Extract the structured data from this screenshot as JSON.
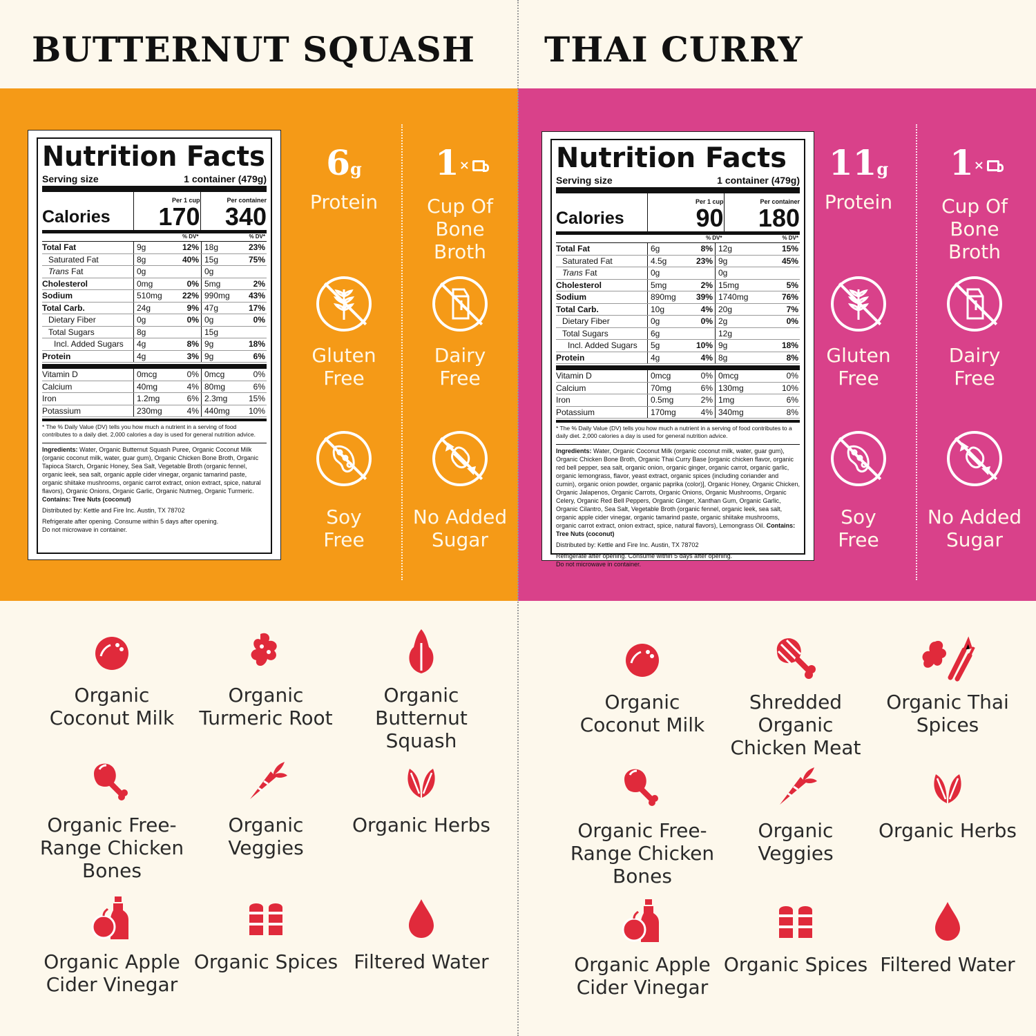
{
  "left": {
    "title": "BUTTERNUT SQUASH",
    "label": {
      "heading": "Nutrition Facts",
      "serving_label": "Serving size",
      "serving_value": "1 container (479g)",
      "calories_label": "Calories",
      "per_cup_head": "Per 1 cup",
      "per_container_head": "Per container",
      "calories_cup": "170",
      "calories_container": "340",
      "dv_head": "% DV*",
      "rows": [
        {
          "name": "Total Fat",
          "a": "9g",
          "p": "12%",
          "a2": "18g",
          "p2": "23%"
        },
        {
          "name": "Saturated Fat",
          "a": "8g",
          "p": "40%",
          "a2": "15g",
          "p2": "75%"
        },
        {
          "name": "Trans Fat",
          "a": "0g",
          "p": "",
          "a2": "0g",
          "p2": ""
        },
        {
          "name": "Cholesterol",
          "a": "0mg",
          "p": "0%",
          "a2": "5mg",
          "p2": "2%"
        },
        {
          "name": "Sodium",
          "a": "510mg",
          "p": "22%",
          "a2": "990mg",
          "p2": "43%"
        },
        {
          "name": "Total Carb.",
          "a": "24g",
          "p": "9%",
          "a2": "47g",
          "p2": "17%"
        },
        {
          "name": "Dietary Fiber",
          "a": "0g",
          "p": "0%",
          "a2": "0g",
          "p2": "0%"
        },
        {
          "name": "Total Sugars",
          "a": "8g",
          "p": "",
          "a2": "15g",
          "p2": ""
        },
        {
          "name": "Incl. Added Sugars",
          "a": "4g",
          "p": "8%",
          "a2": "9g",
          "p2": "18%"
        },
        {
          "name": "Protein",
          "a": "4g",
          "p": "3%",
          "a2": "9g",
          "p2": "6%"
        }
      ],
      "vitamins": [
        {
          "name": "Vitamin D",
          "a": "0mcg",
          "p": "0%",
          "a2": "0mcg",
          "p2": "0%"
        },
        {
          "name": "Calcium",
          "a": "40mg",
          "p": "4%",
          "a2": "80mg",
          "p2": "6%"
        },
        {
          "name": "Iron",
          "a": "1.2mg",
          "p": "6%",
          "a2": "2.3mg",
          "p2": "15%"
        },
        {
          "name": "Potassium",
          "a": "230mg",
          "p": "4%",
          "a2": "440mg",
          "p2": "10%"
        }
      ],
      "footnote": "* The % Daily Value (DV) tells you how much a nutrient in a serving of food contributes to a daily diet. 2,000 calories a day is used for general nutrition advice.",
      "ingredients_label": "Ingredients:",
      "ingredients": "Water, Organic Butternut Squash Puree, Organic Coconut Milk (organic coconut milk, water, guar gum), Organic Chicken Bone Broth, Organic Tapioca Starch, Organic Honey, Sea Salt, Vegetable Broth (organic fennel, organic leek, sea salt, organic apple cider vinegar, organic tamarind paste, organic shiitake mushrooms, organic carrot extract, onion extract, spice, natural flavors), Organic Onions, Organic Garlic, Organic Nutmeg, Organic Turmeric.",
      "contains": "Contains: Tree Nuts (coconut)",
      "distributed": "Distributed by: Kettle and Fire Inc. Austin, TX 78702",
      "refrigerate": "Refrigerate after opening. Consume within 5 days after opening.",
      "microwave": "Do not microwave in container."
    },
    "protein_value": "6",
    "protein_unit": "g",
    "protein_label": "Protein",
    "cup_value": "1",
    "cup_x": "×",
    "cup_label": "Cup Of Bone Broth",
    "gluten_label": "Gluten Free",
    "dairy_label": "Dairy Free",
    "soy_label": "Soy Free",
    "sugar_label": "No Added Sugar",
    "ingredients": [
      {
        "label": "Organic Coconut Milk",
        "icon": "coconut-icon"
      },
      {
        "label": "Organic Turmeric Root",
        "icon": "turmeric-icon"
      },
      {
        "label": "Organic Butternut Squash",
        "icon": "squash-icon"
      },
      {
        "label": "Organic Free-Range Chicken Bones",
        "icon": "chicken-leg-icon"
      },
      {
        "label": "Organic Veggies",
        "icon": "carrot-icon"
      },
      {
        "label": "Organic Herbs",
        "icon": "leaf-icon"
      },
      {
        "label": "Organic Apple Cider Vinegar",
        "icon": "apple-bottle-icon"
      },
      {
        "label": "Organic Spices",
        "icon": "shakers-icon"
      },
      {
        "label": "Filtered Water",
        "icon": "water-drop-icon"
      }
    ]
  },
  "right": {
    "title": "THAI CURRY",
    "label": {
      "heading": "Nutrition Facts",
      "serving_label": "Serving size",
      "serving_value": "1 container (479g)",
      "calories_label": "Calories",
      "per_cup_head": "Per 1 cup",
      "per_container_head": "Per container",
      "calories_cup": "90",
      "calories_container": "180",
      "dv_head": "% DV*",
      "rows": [
        {
          "name": "Total Fat",
          "a": "6g",
          "p": "8%",
          "a2": "12g",
          "p2": "15%"
        },
        {
          "name": "Saturated Fat",
          "a": "4.5g",
          "p": "23%",
          "a2": "9g",
          "p2": "45%"
        },
        {
          "name": "Trans Fat",
          "a": "0g",
          "p": "",
          "a2": "0g",
          "p2": ""
        },
        {
          "name": "Cholesterol",
          "a": "5mg",
          "p": "2%",
          "a2": "15mg",
          "p2": "5%"
        },
        {
          "name": "Sodium",
          "a": "890mg",
          "p": "39%",
          "a2": "1740mg",
          "p2": "76%"
        },
        {
          "name": "Total Carb.",
          "a": "10g",
          "p": "4%",
          "a2": "20g",
          "p2": "7%"
        },
        {
          "name": "Dietary Fiber",
          "a": "0g",
          "p": "0%",
          "a2": "2g",
          "p2": "0%"
        },
        {
          "name": "Total Sugars",
          "a": "6g",
          "p": "",
          "a2": "12g",
          "p2": ""
        },
        {
          "name": "Incl. Added Sugars",
          "a": "5g",
          "p": "10%",
          "a2": "9g",
          "p2": "18%"
        },
        {
          "name": "Protein",
          "a": "4g",
          "p": "4%",
          "a2": "8g",
          "p2": "8%"
        }
      ],
      "vitamins": [
        {
          "name": "Vitamin D",
          "a": "0mcg",
          "p": "0%",
          "a2": "0mcg",
          "p2": "0%"
        },
        {
          "name": "Calcium",
          "a": "70mg",
          "p": "6%",
          "a2": "130mg",
          "p2": "10%"
        },
        {
          "name": "Iron",
          "a": "0.5mg",
          "p": "2%",
          "a2": "1mg",
          "p2": "6%"
        },
        {
          "name": "Potassium",
          "a": "170mg",
          "p": "4%",
          "a2": "340mg",
          "p2": "8%"
        }
      ],
      "footnote": "* The % Daily Value (DV) tells you how much a nutrient in a serving of food contributes to a daily diet. 2,000 calories a day is used for general nutrition advice.",
      "ingredients_label": "Ingredients:",
      "ingredients": "Water, Organic Coconut Milk (organic coconut milk, water, guar gum), Organic Chicken Bone Broth, Organic Thai Curry Base [organic chicken flavor, organic red bell pepper, sea salt, organic onion, organic ginger, organic carrot, organic garlic, organic lemongrass, flavor, yeast extract, organic spices (including coriander and cumin), organic onion powder, organic paprika (color)], Organic Honey, Organic Chicken, Organic Jalapenos, Organic Carrots, Organic Onions, Organic Mushrooms, Organic Celery, Organic Red Bell Peppers, Organic Ginger, Xanthan Gum, Organic Garlic, Organic Cilantro, Sea Salt, Vegetable Broth (organic fennel, organic leek, sea salt, organic apple cider vinegar, organic tamarind paste, organic shiitake mushrooms, organic carrot extract, onion extract, spice, natural flavors), Lemongrass Oil.",
      "contains": "Contains: Tree Nuts (coconut)",
      "distributed": "Distributed by: Kettle and Fire Inc. Austin, TX 78702",
      "refrigerate": "Refrigerate after opening. Consume within 5 days after opening.",
      "microwave": "Do not microwave in container."
    },
    "protein_value": "11",
    "protein_unit": "g",
    "protein_label": "Protein",
    "cup_value": "1",
    "cup_x": "×",
    "cup_label": "Cup Of Bone Broth",
    "gluten_label": "Gluten Free",
    "dairy_label": "Dairy Free",
    "soy_label": "Soy Free",
    "sugar_label": "No Added Sugar",
    "ingredients": [
      {
        "label": "Organic Coconut Milk",
        "icon": "coconut-icon"
      },
      {
        "label": "Shredded Organic Chicken Meat",
        "icon": "drumstick-icon"
      },
      {
        "label": "Organic Thai Spices",
        "icon": "ginger-lemongrass-icon"
      },
      {
        "label": "Organic Free-Range Chicken Bones",
        "icon": "chicken-leg-icon"
      },
      {
        "label": "Organic Veggies",
        "icon": "carrot-icon"
      },
      {
        "label": "Organic Herbs",
        "icon": "leaf-icon"
      },
      {
        "label": "Organic Apple Cider Vinegar",
        "icon": "apple-bottle-icon"
      },
      {
        "label": "Organic Spices",
        "icon": "shakers-icon"
      },
      {
        "label": "Filtered Water",
        "icon": "water-drop-icon"
      }
    ]
  },
  "colors": {
    "butternut_band": "#f59a17",
    "thai_band": "#d9418a",
    "cream_bg": "#fdf8ec",
    "icon_red": "#e02a3b"
  }
}
